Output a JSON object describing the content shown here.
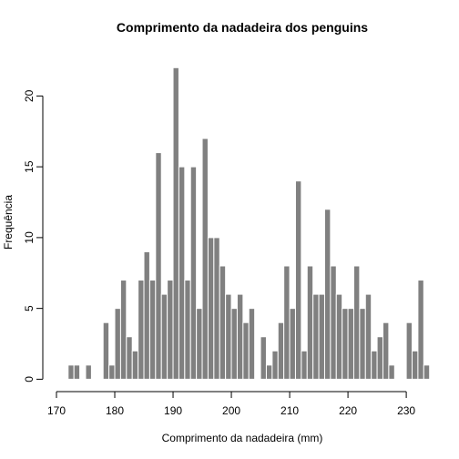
{
  "chart_data": {
    "type": "bar",
    "title": "Comprimento da nadadeira dos penguins",
    "xlabel": "Comprimento da nadadeira (mm)",
    "ylabel": "Frequência",
    "bin_start": 172,
    "bin_width": 1,
    "values": [
      1,
      1,
      0,
      1,
      0,
      0,
      4,
      1,
      5,
      7,
      3,
      2,
      7,
      9,
      7,
      16,
      6,
      7,
      22,
      15,
      7,
      15,
      5,
      17,
      10,
      10,
      8,
      6,
      5,
      6,
      4,
      5,
      0,
      3,
      1,
      2,
      4,
      8,
      5,
      14,
      2,
      8,
      6,
      6,
      12,
      8,
      6,
      5,
      5,
      8,
      5,
      6,
      2,
      3,
      4,
      1,
      0,
      0,
      4,
      2,
      7,
      1
    ],
    "xlim": [
      170,
      231
    ],
    "ylim": [
      0,
      22
    ],
    "x_ticks": [
      "170",
      "180",
      "190",
      "200",
      "210",
      "220",
      "230"
    ],
    "y_ticks": [
      "0",
      "5",
      "10",
      "15",
      "20"
    ],
    "bar_color": "#808080"
  }
}
